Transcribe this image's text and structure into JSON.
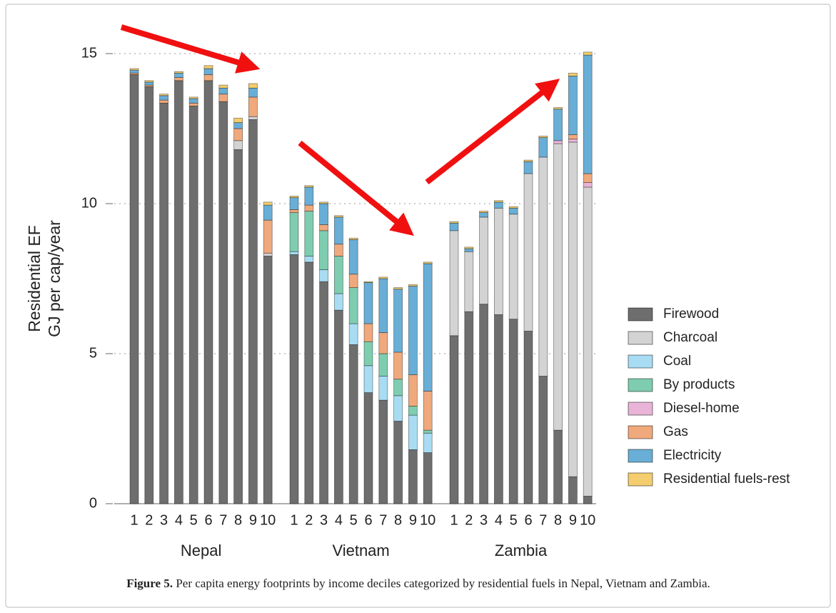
{
  "chart_data": {
    "type": "stacked_bar",
    "y_label_lines": [
      "Residential EF",
      "GJ per cap/year"
    ],
    "groups": [
      "Nepal",
      "Vietnam",
      "Zambia"
    ],
    "categories": [
      "1",
      "2",
      "3",
      "4",
      "5",
      "6",
      "7",
      "8",
      "9",
      "10",
      "1",
      "2",
      "3",
      "4",
      "5",
      "6",
      "7",
      "8",
      "9",
      "10",
      "1",
      "2",
      "3",
      "4",
      "5",
      "6",
      "7",
      "8",
      "9",
      "10"
    ],
    "ylim": [
      0,
      15.5
    ],
    "yticks": [
      0,
      5,
      10,
      15
    ],
    "grid": true,
    "legend": "right",
    "series": [
      {
        "name": "Firewood",
        "color": "#6e6e6e",
        "values": [
          14.3,
          13.9,
          13.35,
          14.1,
          13.25,
          14.1,
          13.4,
          11.8,
          12.8,
          8.25,
          8.3,
          8.05,
          7.4,
          6.45,
          5.3,
          3.7,
          3.45,
          2.75,
          1.8,
          1.7,
          5.6,
          6.4,
          6.65,
          6.3,
          6.15,
          5.75,
          4.25,
          2.45,
          0.9,
          0.25
        ]
      },
      {
        "name": "Charcoal",
        "color": "#d3d3d3",
        "values": [
          0,
          0,
          0,
          0,
          0,
          0,
          0,
          0.3,
          0.1,
          0.1,
          0,
          0,
          0,
          0,
          0,
          0,
          0,
          0,
          0,
          0,
          3.5,
          2.0,
          2.9,
          3.55,
          3.5,
          5.25,
          7.3,
          9.55,
          11.15,
          10.3
        ]
      },
      {
        "name": "Coal",
        "color": "#a8dcf3",
        "values": [
          0,
          0,
          0,
          0,
          0,
          0,
          0,
          0,
          0,
          0,
          0.1,
          0.2,
          0.4,
          0.55,
          0.7,
          0.9,
          0.8,
          0.85,
          1.15,
          0.65,
          0,
          0,
          0,
          0,
          0,
          0,
          0,
          0,
          0,
          0
        ]
      },
      {
        "name": "By products",
        "color": "#7ecdb0",
        "values": [
          0,
          0,
          0,
          0,
          0,
          0,
          0,
          0,
          0,
          0,
          1.3,
          1.5,
          1.3,
          1.25,
          1.2,
          0.8,
          0.75,
          0.55,
          0.3,
          0.1,
          0,
          0,
          0,
          0,
          0,
          0,
          0,
          0,
          0,
          0
        ]
      },
      {
        "name": "Diesel-home",
        "color": "#e9b4d8",
        "values": [
          0,
          0,
          0,
          0,
          0,
          0,
          0,
          0,
          0,
          0,
          0,
          0,
          0,
          0,
          0,
          0,
          0,
          0,
          0,
          0,
          0,
          0,
          0,
          0,
          0,
          0,
          0,
          0.1,
          0.1,
          0.15
        ]
      },
      {
        "name": "Gas",
        "color": "#f0a97c",
        "values": [
          0.05,
          0.05,
          0.1,
          0.1,
          0.1,
          0.2,
          0.25,
          0.4,
          0.65,
          1.1,
          0.1,
          0.2,
          0.2,
          0.4,
          0.45,
          0.6,
          0.7,
          0.9,
          1.05,
          1.3,
          0,
          0,
          0,
          0,
          0,
          0,
          0,
          0,
          0.15,
          0.3
        ]
      },
      {
        "name": "Electricity",
        "color": "#69aed6",
        "values": [
          0.1,
          0.1,
          0.15,
          0.15,
          0.15,
          0.2,
          0.2,
          0.2,
          0.3,
          0.5,
          0.4,
          0.6,
          0.7,
          0.9,
          1.15,
          1.37,
          1.8,
          2.1,
          2.95,
          4.25,
          0.25,
          0.1,
          0.15,
          0.2,
          0.2,
          0.4,
          0.65,
          1.05,
          1.95,
          3.95
        ]
      },
      {
        "name": "Residential fuels-rest",
        "color": "#f4cd6e",
        "values": [
          0.05,
          0.05,
          0.05,
          0.05,
          0.05,
          0.1,
          0.1,
          0.15,
          0.15,
          0.1,
          0.05,
          0.05,
          0.05,
          0.05,
          0.05,
          0.03,
          0.05,
          0.05,
          0.05,
          0.05,
          0.05,
          0.05,
          0.05,
          0.05,
          0.05,
          0.05,
          0.05,
          0.05,
          0.1,
          0.1
        ]
      }
    ]
  },
  "caption": {
    "label": "Figure 5.",
    "text": " Per capita energy footprints by income deciles categorized by residential fuels in Nepal, Vietnam and Zambia."
  }
}
